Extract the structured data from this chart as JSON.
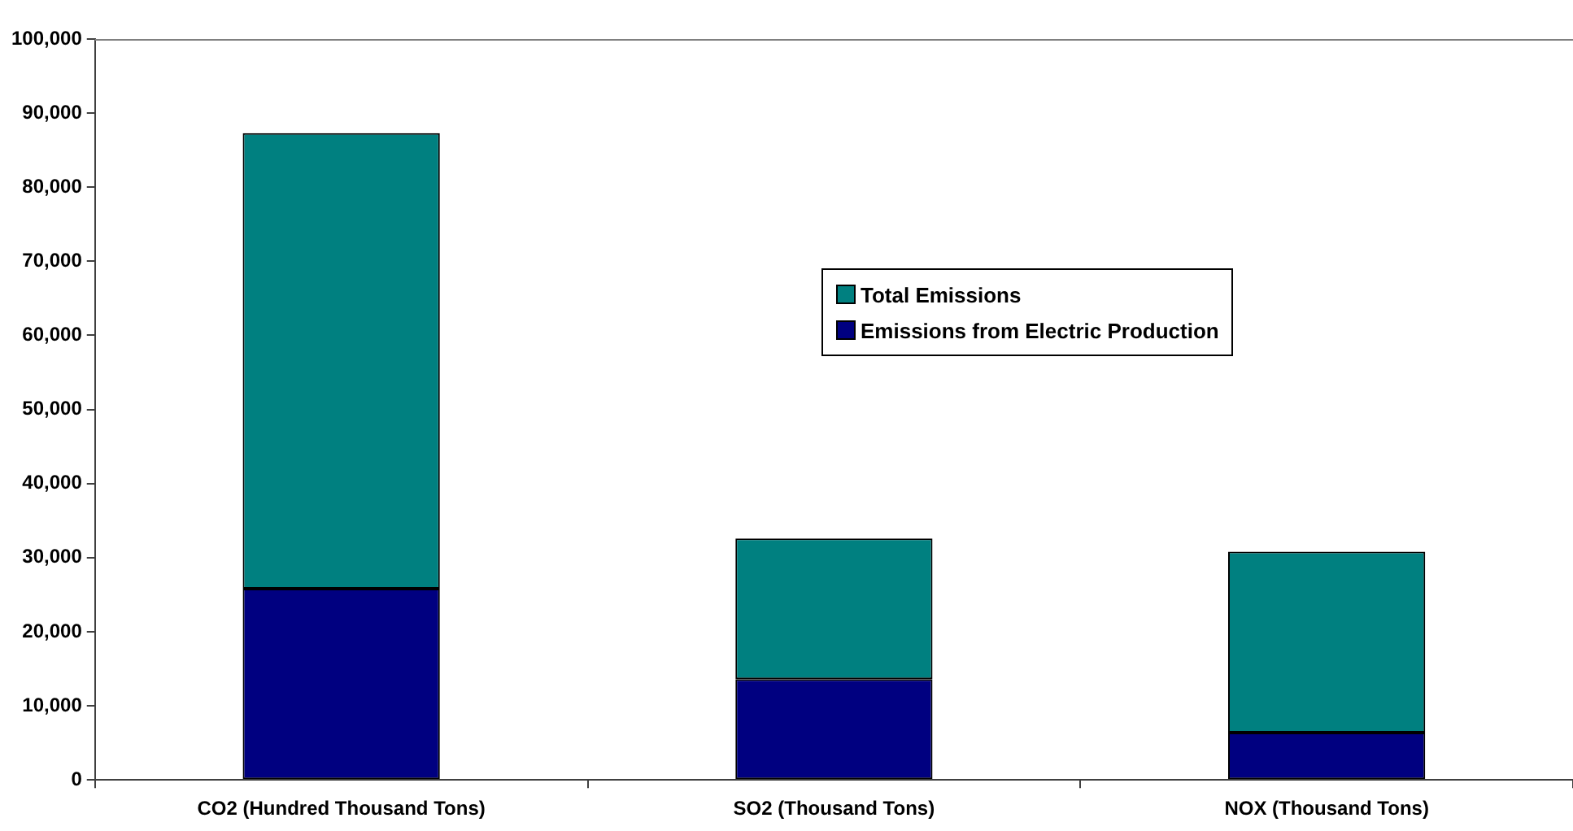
{
  "chart_data": {
    "type": "bar",
    "stacked": true,
    "categories": [
      "CO2 (Hundred Thousand Tons)",
      "SO2 (Thousand Tons)",
      "NOX (Thousand Tons)"
    ],
    "series": [
      {
        "name": "Emissions from Electric Production",
        "color": "#000080",
        "values": [
          25800,
          13600,
          6400
        ]
      },
      {
        "name": "Total Emissions",
        "color": "#008080",
        "values": [
          61500,
          19000,
          24400
        ]
      }
    ],
    "ylim": [
      0,
      100000
    ],
    "yticks": [
      {
        "value": 0,
        "label": "0"
      },
      {
        "value": 10000,
        "label": "10,000"
      },
      {
        "value": 20000,
        "label": "20,000"
      },
      {
        "value": 30000,
        "label": "30,000"
      },
      {
        "value": 40000,
        "label": "40,000"
      },
      {
        "value": 50000,
        "label": "50,000"
      },
      {
        "value": 60000,
        "label": "60,000"
      },
      {
        "value": 70000,
        "label": "70,000"
      },
      {
        "value": 80000,
        "label": "80,000"
      },
      {
        "value": 90000,
        "label": "90,000"
      },
      {
        "value": 100000,
        "label": "100,000"
      }
    ],
    "grid": false,
    "legend": "right"
  }
}
